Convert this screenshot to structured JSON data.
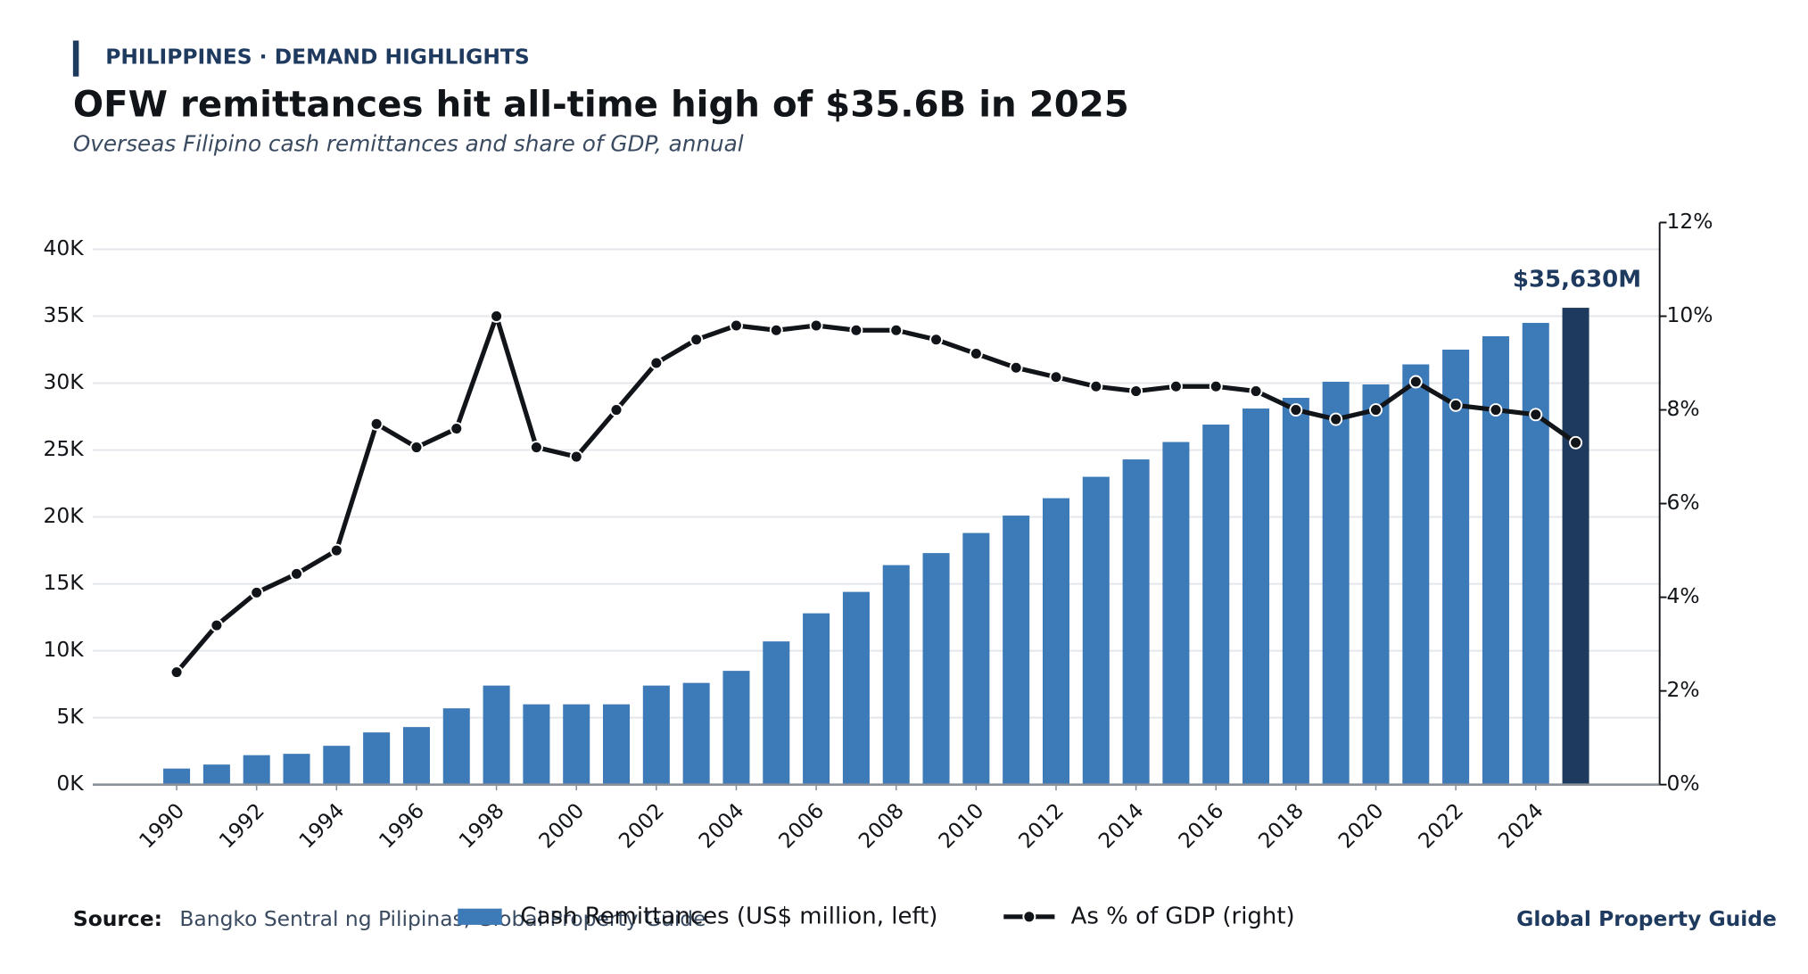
{
  "header": {
    "kicker": "PHILIPPINES · DEMAND HIGHLIGHTS",
    "title": "OFW remittances hit all-time high of $35.6B in 2025",
    "subtitle": "Overseas Filipino cash remittances and share of GDP, annual"
  },
  "chart_data": {
    "type": "combo",
    "x": [
      1990,
      1991,
      1992,
      1993,
      1994,
      1995,
      1996,
      1997,
      1998,
      1999,
      2000,
      2001,
      2002,
      2003,
      2004,
      2005,
      2006,
      2007,
      2008,
      2009,
      2010,
      2011,
      2012,
      2013,
      2014,
      2015,
      2016,
      2017,
      2018,
      2019,
      2020,
      2021,
      2022,
      2023,
      2024,
      2025
    ],
    "xlim": [
      1987.9,
      2027.1
    ],
    "xticks": [
      1990,
      1992,
      1994,
      1996,
      1998,
      2000,
      2002,
      2004,
      2006,
      2008,
      2010,
      2012,
      2014,
      2016,
      2018,
      2020,
      2022,
      2024
    ],
    "ylim": [
      0,
      42000
    ],
    "yticks": [
      {
        "value": 0,
        "label": "0K"
      },
      {
        "value": 5000,
        "label": "5K"
      },
      {
        "value": 10000,
        "label": "10K"
      },
      {
        "value": 15000,
        "label": "15K"
      },
      {
        "value": 20000,
        "label": "20K"
      },
      {
        "value": 25000,
        "label": "25K"
      },
      {
        "value": 30000,
        "label": "30K"
      },
      {
        "value": 35000,
        "label": "35K"
      },
      {
        "value": 40000,
        "label": "40K"
      }
    ],
    "y2lim": [
      0,
      12
    ],
    "y2ticks": [
      {
        "value": 0,
        "label": "0%"
      },
      {
        "value": 2,
        "label": "2%"
      },
      {
        "value": 4,
        "label": "4%"
      },
      {
        "value": 6,
        "label": "6%"
      },
      {
        "value": 8,
        "label": "8%"
      },
      {
        "value": 10,
        "label": "10%"
      },
      {
        "value": 12,
        "label": "12%"
      }
    ],
    "grid": true,
    "series": [
      {
        "name": "Cash Remittances (US$ million, left)",
        "type": "bar",
        "color": "#3d7ab8",
        "colors": [
          "#3d7ab8",
          "#3d7ab8",
          "#3d7ab8",
          "#3d7ab8",
          "#3d7ab8",
          "#3d7ab8",
          "#3d7ab8",
          "#3d7ab8",
          "#3d7ab8",
          "#3d7ab8",
          "#3d7ab8",
          "#3d7ab8",
          "#3d7ab8",
          "#3d7ab8",
          "#3d7ab8",
          "#3d7ab8",
          "#3d7ab8",
          "#3d7ab8",
          "#3d7ab8",
          "#3d7ab8",
          "#3d7ab8",
          "#3d7ab8",
          "#3d7ab8",
          "#3d7ab8",
          "#3d7ab8",
          "#3d7ab8",
          "#3d7ab8",
          "#3d7ab8",
          "#3d7ab8",
          "#3d7ab8",
          "#3d7ab8",
          "#3d7ab8",
          "#3d7ab8",
          "#3d7ab8",
          "#3d7ab8",
          "#1f3a5f"
        ],
        "values": [
          1200,
          1500,
          2200,
          2300,
          2900,
          3900,
          4300,
          5700,
          7400,
          6000,
          6000,
          6000,
          7400,
          7600,
          8500,
          10700,
          12800,
          14400,
          16400,
          17300,
          18800,
          20100,
          21400,
          23000,
          24300,
          25600,
          26900,
          28100,
          28900,
          30100,
          29900,
          31400,
          32500,
          33500,
          34500,
          35630
        ],
        "value_labels": [
          null,
          null,
          null,
          null,
          null,
          null,
          null,
          null,
          null,
          null,
          null,
          null,
          null,
          null,
          null,
          null,
          null,
          null,
          null,
          null,
          null,
          null,
          null,
          null,
          null,
          null,
          null,
          null,
          null,
          null,
          null,
          null,
          null,
          null,
          null,
          "$35,630M"
        ]
      },
      {
        "name": "As % of GDP (right)",
        "type": "line",
        "axis": "y2",
        "color": "#111418",
        "values": [
          2.4,
          3.4,
          4.1,
          4.5,
          5.0,
          7.7,
          7.2,
          7.6,
          10.0,
          7.2,
          7.0,
          8.0,
          9.0,
          9.5,
          9.8,
          9.7,
          9.8,
          9.7,
          9.7,
          9.5,
          9.2,
          8.9,
          8.7,
          8.5,
          8.4,
          8.5,
          8.5,
          8.4,
          8.0,
          7.8,
          8.0,
          8.6,
          8.1,
          8.0,
          7.9,
          7.3
        ]
      }
    ]
  },
  "footer": {
    "source_label": "Source:",
    "source": "Bangko Sentral ng Pilipinas, Global Property Guide",
    "brand": "Global Property Guide"
  }
}
